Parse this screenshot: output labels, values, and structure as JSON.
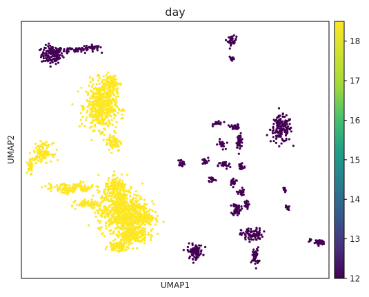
{
  "chart_data": {
    "type": "scatter",
    "title": "day",
    "xlabel": "UMAP1",
    "ylabel": "UMAP2",
    "colorbar": {
      "label": "",
      "min": 12,
      "max": 18.5,
      "ticks": [
        "12",
        "13",
        "14",
        "15",
        "16",
        "17",
        "18"
      ],
      "colormap": "viridis"
    },
    "axis_ticks_shown": false,
    "xlim": [
      0,
      100
    ],
    "ylim": [
      0,
      100
    ],
    "series": [
      {
        "value": 12,
        "color": "#440154",
        "clusters": [
          {
            "cx": 10,
            "cy": 87,
            "rx": 3.5,
            "ry": 3.5,
            "n": 140
          },
          {
            "cx": 18,
            "cy": 89,
            "rx": 6,
            "ry": 1.2,
            "n": 60
          },
          {
            "cx": 23,
            "cy": 90,
            "rx": 2,
            "ry": 0.8,
            "n": 25
          },
          {
            "cx": 68.5,
            "cy": 92.5,
            "rx": 1.4,
            "ry": 1.8,
            "n": 40
          },
          {
            "cx": 68.5,
            "cy": 85.5,
            "rx": 0.9,
            "ry": 1.2,
            "n": 15
          },
          {
            "cx": 84.5,
            "cy": 58,
            "rx": 3.5,
            "ry": 5,
            "n": 160
          },
          {
            "cx": 64,
            "cy": 60.5,
            "rx": 1.6,
            "ry": 1,
            "n": 20
          },
          {
            "cx": 69.5,
            "cy": 59,
            "rx": 1.5,
            "ry": 1,
            "n": 25
          },
          {
            "cx": 71,
            "cy": 53.5,
            "rx": 1.1,
            "ry": 2.5,
            "n": 40
          },
          {
            "cx": 65,
            "cy": 52,
            "rx": 1.2,
            "ry": 2,
            "n": 20
          },
          {
            "cx": 52,
            "cy": 45,
            "rx": 1.2,
            "ry": 1.2,
            "n": 18
          },
          {
            "cx": 59.5,
            "cy": 45.5,
            "rx": 1.2,
            "ry": 1.4,
            "n": 20
          },
          {
            "cx": 66,
            "cy": 44,
            "rx": 2,
            "ry": 1.5,
            "n": 28
          },
          {
            "cx": 71.5,
            "cy": 43.5,
            "rx": 1.2,
            "ry": 2,
            "n": 22
          },
          {
            "cx": 62,
            "cy": 38.5,
            "rx": 1.2,
            "ry": 1.2,
            "n": 18
          },
          {
            "cx": 69,
            "cy": 37.5,
            "rx": 1.4,
            "ry": 1.4,
            "n": 25
          },
          {
            "cx": 71.5,
            "cy": 33.5,
            "rx": 1,
            "ry": 2,
            "n": 22
          },
          {
            "cx": 70,
            "cy": 27,
            "rx": 1.4,
            "ry": 2.5,
            "n": 55
          },
          {
            "cx": 73,
            "cy": 28.5,
            "rx": 0.9,
            "ry": 1.5,
            "n": 20
          },
          {
            "cx": 85.5,
            "cy": 34.5,
            "rx": 0.5,
            "ry": 1,
            "n": 10
          },
          {
            "cx": 86.5,
            "cy": 27.5,
            "rx": 0.6,
            "ry": 0.9,
            "n": 10
          },
          {
            "cx": 75,
            "cy": 17,
            "rx": 3.5,
            "ry": 2.5,
            "n": 90
          },
          {
            "cx": 76,
            "cy": 8.5,
            "rx": 1.2,
            "ry": 3.5,
            "n": 45
          },
          {
            "cx": 56.5,
            "cy": 10.5,
            "rx": 2.5,
            "ry": 2.8,
            "n": 85
          },
          {
            "cx": 97,
            "cy": 14,
            "rx": 1.5,
            "ry": 1,
            "n": 35
          },
          {
            "cx": 94,
            "cy": 15,
            "rx": 0.8,
            "ry": 0.5,
            "n": 8
          }
        ]
      },
      {
        "value": 18.5,
        "color": "#fde725",
        "clusters": [
          {
            "cx": 26,
            "cy": 67,
            "rx": 5,
            "ry": 9,
            "n": 520
          },
          {
            "cx": 29,
            "cy": 76,
            "rx": 3,
            "ry": 3,
            "n": 90
          },
          {
            "cx": 30,
            "cy": 53,
            "rx": 2.5,
            "ry": 3.5,
            "n": 70
          },
          {
            "cx": 33,
            "cy": 26,
            "rx": 8,
            "ry": 8,
            "n": 700
          },
          {
            "cx": 36,
            "cy": 17,
            "rx": 5,
            "ry": 3.5,
            "n": 200
          },
          {
            "cx": 39,
            "cy": 23,
            "rx": 4,
            "ry": 3,
            "n": 130
          },
          {
            "cx": 31,
            "cy": 35,
            "rx": 4,
            "ry": 4,
            "n": 150
          },
          {
            "cx": 31.5,
            "cy": 12.5,
            "rx": 3,
            "ry": 2,
            "n": 80
          },
          {
            "cx": 7,
            "cy": 49,
            "rx": 3,
            "ry": 3.5,
            "n": 120
          },
          {
            "cx": 3,
            "cy": 44,
            "rx": 1,
            "ry": 3,
            "n": 40
          },
          {
            "cx": 16,
            "cy": 35,
            "rx": 8,
            "ry": 2,
            "n": 140
          },
          {
            "cx": 22,
            "cy": 29,
            "rx": 4,
            "ry": 1.5,
            "n": 80
          }
        ]
      }
    ]
  }
}
